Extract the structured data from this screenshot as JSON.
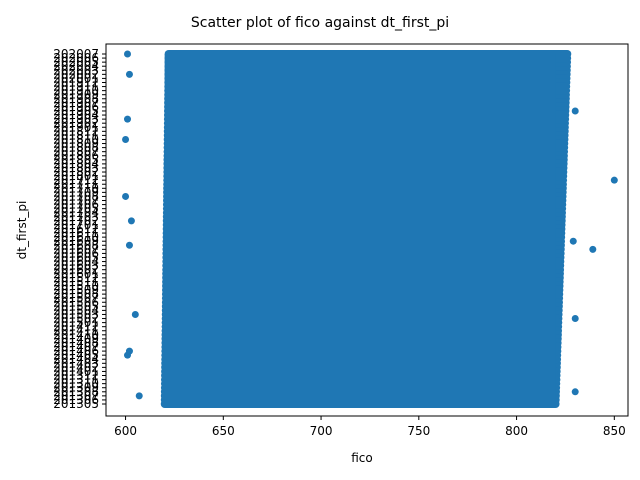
{
  "chart_data": {
    "type": "scatter",
    "title": "Scatter plot of fico against dt_first_pi",
    "xlabel": "fico",
    "ylabel": "dt_first_pi",
    "xlim": [
      590,
      857
    ],
    "x_ticks": [
      600,
      650,
      700,
      750,
      800,
      850
    ],
    "y_categories": [
      "201305",
      "201306",
      "201307",
      "201308",
      "201309",
      "201310",
      "201311",
      "201312",
      "201401",
      "201402",
      "201403",
      "201404",
      "201405",
      "201406",
      "201407",
      "201408",
      "201409",
      "201410",
      "201411",
      "201412",
      "201501",
      "201502",
      "201503",
      "201504",
      "201505",
      "201506",
      "201507",
      "201508",
      "201509",
      "201510",
      "201511",
      "201512",
      "201601",
      "201602",
      "201603",
      "201604",
      "201605",
      "201606",
      "201607",
      "201608",
      "201609",
      "201610",
      "201611",
      "201612",
      "201701",
      "201702",
      "201703",
      "201704",
      "201705",
      "201706",
      "201707",
      "201708",
      "201709",
      "201710",
      "201711",
      "201712",
      "201801",
      "201802",
      "201803",
      "201804",
      "201805",
      "201806",
      "201807",
      "201808",
      "201809",
      "201810",
      "201811",
      "201812",
      "201901",
      "201902",
      "201903",
      "201904",
      "201905",
      "201906",
      "201907",
      "201908",
      "201909",
      "201910",
      "201911",
      "201912",
      "202001",
      "202002",
      "202003",
      "202004",
      "202005",
      "202006",
      "202007"
    ],
    "dense_band": {
      "x_min": 618,
      "x_max": 822,
      "x_min_top": 620,
      "x_max_top": 828
    },
    "outliers": [
      {
        "x": 850,
        "y": "201712"
      },
      {
        "x": 839,
        "y": "201607"
      },
      {
        "x": 830,
        "y": "201905"
      },
      {
        "x": 829,
        "y": "201609"
      },
      {
        "x": 830,
        "y": "201502"
      },
      {
        "x": 830,
        "y": "201308"
      },
      {
        "x": 607,
        "y": "201307"
      },
      {
        "x": 601,
        "y": "201405"
      },
      {
        "x": 602,
        "y": "201406"
      },
      {
        "x": 600,
        "y": "201810"
      },
      {
        "x": 600,
        "y": "201708"
      },
      {
        "x": 601,
        "y": "201903"
      },
      {
        "x": 601,
        "y": "202007"
      },
      {
        "x": 602,
        "y": "202002"
      },
      {
        "x": 605,
        "y": "201503"
      },
      {
        "x": 602,
        "y": "201608"
      },
      {
        "x": 603,
        "y": "201702"
      }
    ],
    "color": "#1f77b4"
  }
}
